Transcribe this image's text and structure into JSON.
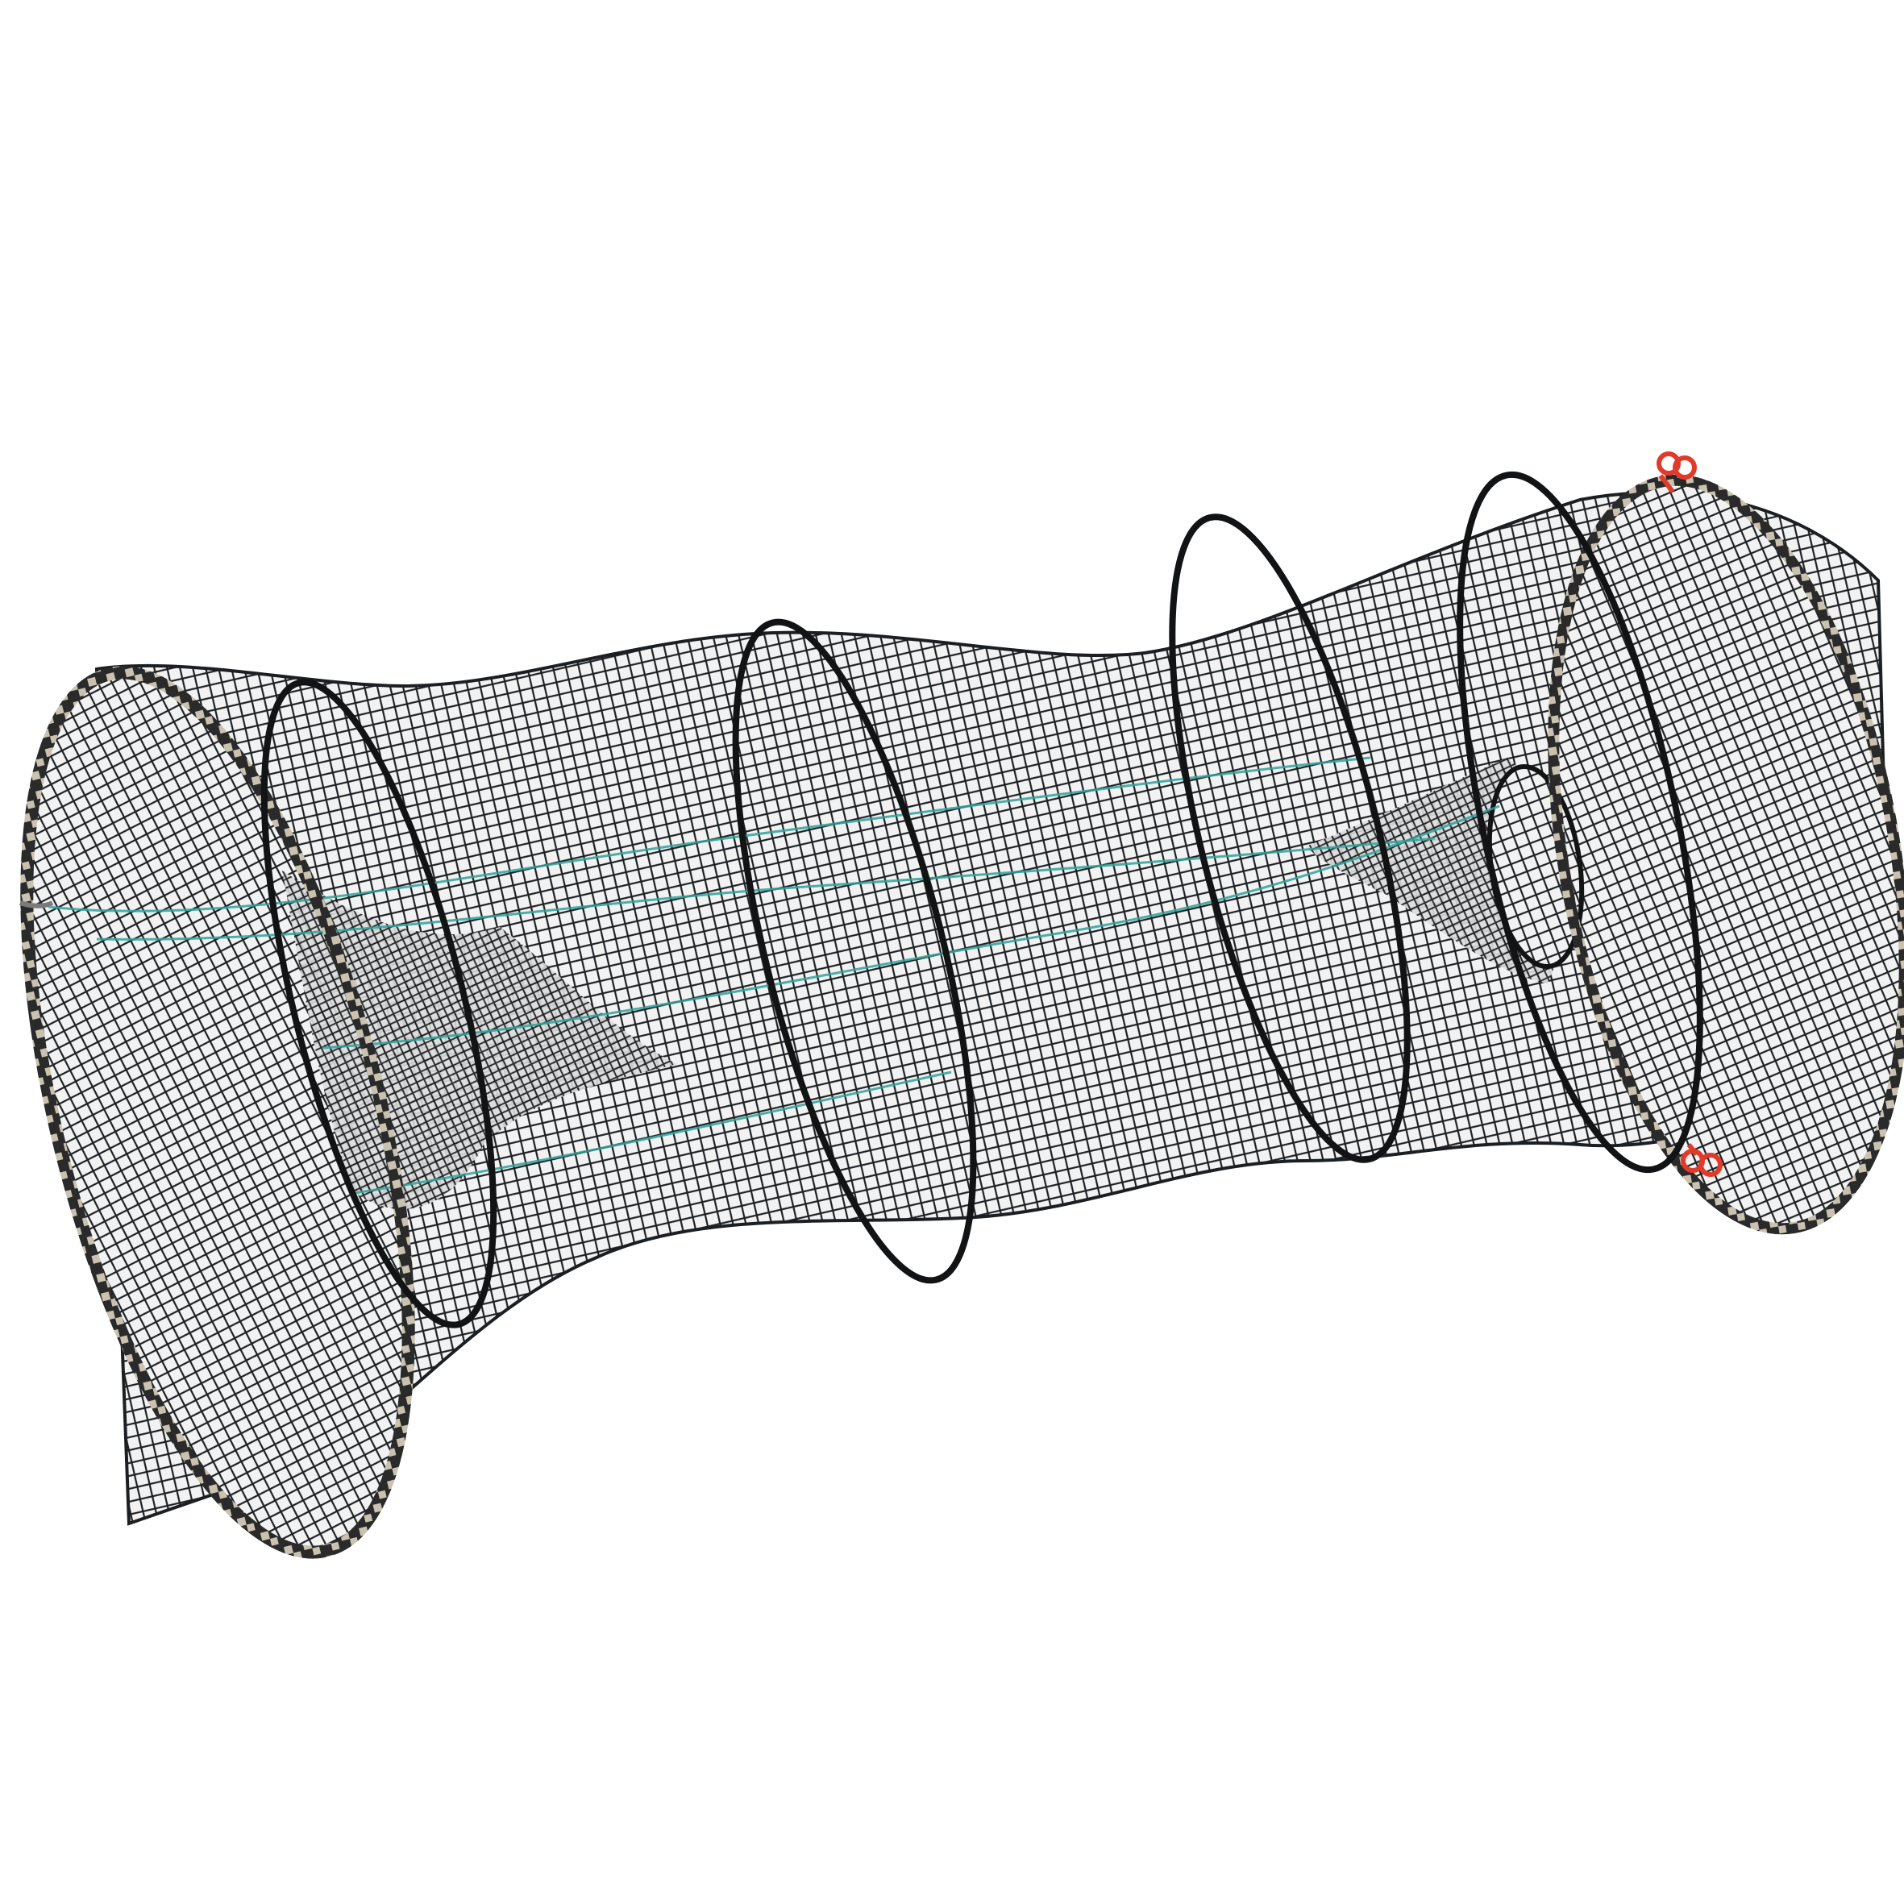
{
  "image": {
    "subject": "collapsible-fishing-trap-net",
    "background_color": "#ffffff",
    "colors": {
      "net_mesh": "#1c1f22",
      "hoop_wire": "#111315",
      "rope_rim_dark": "#2a2a2a",
      "rope_rim_light": "#c9c2b0",
      "green_thread": "#2fa39a",
      "red_clips": "#e03a2a"
    },
    "parts": {
      "hoop_count": 6,
      "funnel_entrances": 2,
      "clip_groups": 2
    }
  }
}
